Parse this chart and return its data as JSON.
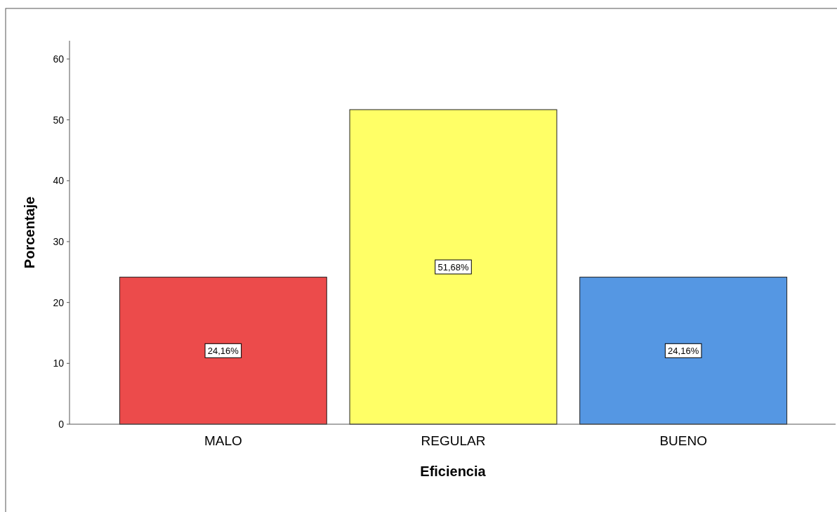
{
  "chart_data": {
    "type": "bar",
    "xlabel": "Eficiencia",
    "ylabel": "Porcentaje",
    "categories": [
      "MALO",
      "REGULAR",
      "BUENO"
    ],
    "values": [
      24.16,
      51.68,
      24.16
    ],
    "colors": [
      "#ec4b4b",
      "#ffff66",
      "#5597e3"
    ],
    "value_labels": [
      "24,16%",
      "51,68%",
      "24,16%"
    ],
    "ylim": [
      0,
      63
    ],
    "yticks": [
      0,
      10,
      20,
      30,
      40,
      50,
      60
    ],
    "grid": false
  }
}
